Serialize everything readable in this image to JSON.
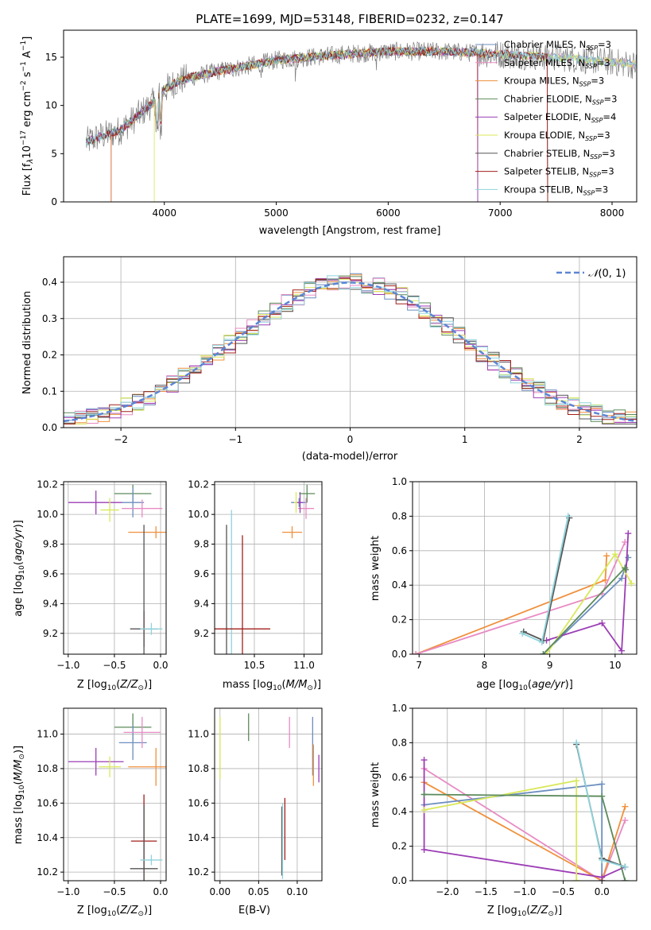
{
  "figure": {
    "title": "PLATE=1699, MJD=53148, FIBERID=0232, z=0.147"
  },
  "colors": {
    "c_miles": "#6c8ebf",
    "s_miles": "#e88bc4",
    "k_miles": "#f0903c",
    "c_elodie": "#5b8a5b",
    "s_elodie": "#9c3db5",
    "k_elodie": "#d9e85a",
    "c_stelib": "#555555",
    "s_stelib": "#a0201c",
    "k_stelib": "#8fd3dc",
    "data": "#808080",
    "normal": "#5b86d6"
  },
  "chart_data": [
    {
      "id": "spectrum",
      "type": "line",
      "xlabel": "wavelength [Angstrom, rest frame]",
      "ylabel": "Flux [f_λ10^-17 erg cm^-2 s^-1 A^-1]",
      "xlim": [
        3100,
        8220
      ],
      "ylim": [
        0,
        17.8
      ],
      "xticks": [
        4000,
        5000,
        6000,
        7000,
        8000
      ],
      "yticks": [
        0,
        5,
        10,
        15
      ],
      "legend_position": "upper-right",
      "series": [
        {
          "name": "Chabrier MILES, N_SSP=3",
          "key": "c_miles"
        },
        {
          "name": "Salpeter MILES, N_SSP=3",
          "key": "s_miles"
        },
        {
          "name": "Kroupa MILES, N_SSP=3",
          "key": "k_miles"
        },
        {
          "name": "Chabrier ELODIE, N_SSP=3",
          "key": "c_elodie"
        },
        {
          "name": "Salpeter ELODIE, N_SSP=4",
          "key": "s_elodie"
        },
        {
          "name": "Kroupa ELODIE, N_SSP=3",
          "key": "k_elodie"
        },
        {
          "name": "Chabrier STELIB, N_SSP=3",
          "key": "c_stelib"
        },
        {
          "name": "Salpeter STELIB, N_SSP=3",
          "key": "s_stelib"
        },
        {
          "name": "Kroupa STELIB, N_SSP=3",
          "key": "k_stelib"
        }
      ],
      "continuum": {
        "x": [
          3300,
          3400,
          3500,
          3600,
          3700,
          3800,
          3900,
          4000,
          4100,
          4200,
          4500,
          4800,
          5000,
          5300,
          5600,
          6000,
          6500,
          7000,
          7500,
          8000,
          8200
        ],
        "y": [
          6.2,
          6.7,
          7.0,
          7.4,
          8.3,
          9.3,
          10.3,
          11.6,
          12.4,
          12.8,
          13.6,
          14.2,
          14.7,
          15.0,
          15.3,
          15.6,
          15.6,
          15.3,
          15.0,
          14.5,
          14.2
        ]
      },
      "model_cutoffs": [
        {
          "key": "s_miles",
          "x": 3525
        },
        {
          "key": "k_miles",
          "x": 3525
        },
        {
          "key": "c_miles",
          "x": 3525
        },
        {
          "key": "k_elodie",
          "x": 3910
        },
        {
          "key": "c_elodie",
          "x": 6800
        },
        {
          "key": "s_elodie",
          "x": 6800
        },
        {
          "key": "k_miles",
          "x": 6800
        },
        {
          "key": "s_stelib",
          "x": 7425
        },
        {
          "key": "c_stelib",
          "x": 7425
        }
      ]
    },
    {
      "id": "residuals",
      "type": "line",
      "xlabel": "(data-model)/error",
      "ylabel": "Normed distribution",
      "xlim": [
        -2.5,
        2.5
      ],
      "ylim": [
        0,
        0.47
      ],
      "xticks": [
        -2,
        -1,
        0,
        1,
        2
      ],
      "yticks": [
        0.0,
        0.1,
        0.2,
        0.3,
        0.4
      ],
      "grid": true,
      "legend_position": "upper-right",
      "normal_label": "N(0,1)",
      "bin_width": 0.1
    },
    {
      "id": "age_vs_z",
      "type": "scatter",
      "xlabel": "Z [log10(Z/Z⊙)]",
      "ylabel": "age [log10(age/yr)]",
      "xlim": [
        -1.05,
        0.06
      ],
      "ylim": [
        9.06,
        10.22
      ],
      "xticks": [
        -1.0,
        -0.5,
        0.0
      ],
      "yticks": [
        9.2,
        9.4,
        9.6,
        9.8,
        10.0,
        10.2
      ],
      "grid": true,
      "points": [
        {
          "key": "s_elodie",
          "x": -0.7,
          "y": 10.08,
          "xerr": 0.3,
          "yerr": 0.08
        },
        {
          "key": "k_elodie",
          "x": -0.55,
          "y": 10.03,
          "xerr": 0.1,
          "yerr": 0.08
        },
        {
          "key": "c_elodie",
          "x": -0.3,
          "y": 10.14,
          "xerr": 0.2,
          "yerr": 0.06
        },
        {
          "key": "c_miles",
          "x": -0.3,
          "y": 10.08,
          "xerr": 0.12,
          "yerr": 0.1
        },
        {
          "key": "s_miles",
          "x": -0.2,
          "y": 10.04,
          "xerr": 0.22,
          "yerr": 0.06
        },
        {
          "key": "k_miles",
          "x": -0.05,
          "y": 9.88,
          "xerr": 0.3,
          "yerr": 0.04
        },
        {
          "key": "s_stelib",
          "x": -0.18,
          "y": 9.23,
          "xerr": 0.03,
          "yerr": 0.12
        },
        {
          "key": "c_stelib",
          "x": -0.18,
          "y": 9.23,
          "xerr": 0.15,
          "yerr": 0.7
        },
        {
          "key": "k_stelib",
          "x": -0.1,
          "y": 9.23,
          "xerr": 0.12,
          "yerr": 0.04
        }
      ]
    },
    {
      "id": "age_vs_mass",
      "type": "scatter",
      "xlabel": "mass [log10(M/M⊙)]",
      "ylabel": "",
      "xlim": [
        10.1,
        11.18
      ],
      "ylim": [
        9.06,
        10.22
      ],
      "xticks": [
        10.5,
        11.0
      ],
      "yticks": [
        9.2,
        9.4,
        9.6,
        9.8,
        10.0,
        10.2
      ],
      "grid": true,
      "points": [
        {
          "key": "c_stelib",
          "x": 10.22,
          "y": 9.23,
          "xerr": 0.01,
          "yerr": 0.7
        },
        {
          "key": "k_stelib",
          "x": 10.27,
          "y": 9.23,
          "xerr": 0.01,
          "yerr": 0.8
        },
        {
          "key": "s_stelib",
          "x": 10.38,
          "y": 9.23,
          "xerr": 0.28,
          "yerr": 0.63
        },
        {
          "key": "k_miles",
          "x": 10.88,
          "y": 9.88,
          "xerr": 0.1,
          "yerr": 0.04
        },
        {
          "key": "c_miles",
          "x": 10.95,
          "y": 10.08,
          "xerr": 0.08,
          "yerr": 0.03
        },
        {
          "key": "s_miles",
          "x": 11.02,
          "y": 10.04,
          "xerr": 0.08,
          "yerr": 0.07
        },
        {
          "key": "k_elodie",
          "x": 10.92,
          "y": 10.08,
          "xerr": 0.02,
          "yerr": 0.07
        },
        {
          "key": "s_elodie",
          "x": 10.96,
          "y": 10.08,
          "xerr": 0.03,
          "yerr": 0.07
        },
        {
          "key": "c_elodie",
          "x": 11.03,
          "y": 10.14,
          "xerr": 0.08,
          "yerr": 0.06
        }
      ]
    },
    {
      "id": "weight_vs_age",
      "type": "line",
      "xlabel": "age [log10(age/yr)]",
      "ylabel": "mass weight",
      "xlim": [
        6.9,
        10.33
      ],
      "ylim": [
        0,
        1.0
      ],
      "xticks": [
        7,
        8,
        9,
        10
      ],
      "yticks": [
        0.0,
        0.2,
        0.4,
        0.6,
        0.8,
        1.0
      ],
      "grid": true,
      "series": [
        {
          "key": "k_miles",
          "x": [
            6.95,
            9.85,
            9.87
          ],
          "y": [
            0.0,
            0.43,
            0.57
          ]
        },
        {
          "key": "s_miles",
          "x": [
            6.95,
            9.8,
            10.15
          ],
          "y": [
            0.0,
            0.35,
            0.65
          ]
        },
        {
          "key": "c_miles",
          "x": [
            8.9,
            10.1,
            10.2
          ],
          "y": [
            0.0,
            0.44,
            0.56
          ]
        },
        {
          "key": "s_elodie",
          "x": [
            8.95,
            9.8,
            10.1,
            10.2
          ],
          "y": [
            0.08,
            0.18,
            0.02,
            0.7
          ]
        },
        {
          "key": "k_elodie",
          "x": [
            8.95,
            10.0,
            10.25
          ],
          "y": [
            0.0,
            0.58,
            0.41
          ]
        },
        {
          "key": "c_elodie",
          "x": [
            8.9,
            10.15,
            10.16
          ],
          "y": [
            0.0,
            0.5,
            0.49
          ]
        },
        {
          "key": "c_stelib",
          "x": [
            8.6,
            8.9,
            9.3
          ],
          "y": [
            0.13,
            0.08,
            0.79
          ]
        },
        {
          "key": "k_stelib",
          "x": [
            8.58,
            8.88,
            9.28
          ],
          "y": [
            0.12,
            0.07,
            0.8
          ]
        }
      ]
    },
    {
      "id": "mass_vs_z",
      "type": "scatter",
      "xlabel": "Z [log10(Z/Z⊙)]",
      "ylabel": "mass [log10(M/M⊙)]",
      "xlim": [
        -1.05,
        0.06
      ],
      "ylim": [
        10.15,
        11.15
      ],
      "xticks": [
        -1.0,
        -0.5,
        0.0
      ],
      "yticks": [
        10.2,
        10.4,
        10.6,
        10.8,
        11.0
      ],
      "grid": true,
      "points": [
        {
          "key": "s_elodie",
          "x": -0.7,
          "y": 10.84,
          "xerr": 0.3,
          "yerr": 0.08
        },
        {
          "key": "k_elodie",
          "x": -0.55,
          "y": 10.81,
          "xerr": 0.12,
          "yerr": 0.06
        },
        {
          "key": "c_elodie",
          "x": -0.3,
          "y": 11.04,
          "xerr": 0.2,
          "yerr": 0.08
        },
        {
          "key": "c_miles",
          "x": -0.3,
          "y": 10.95,
          "xerr": 0.15,
          "yerr": 0.1
        },
        {
          "key": "s_miles",
          "x": -0.2,
          "y": 11.01,
          "xerr": 0.2,
          "yerr": 0.09
        },
        {
          "key": "k_miles",
          "x": -0.05,
          "y": 10.81,
          "xerr": 0.3,
          "yerr": 0.11
        },
        {
          "key": "s_stelib",
          "x": -0.18,
          "y": 10.38,
          "xerr": 0.14,
          "yerr": 0.27
        },
        {
          "key": "c_stelib",
          "x": -0.18,
          "y": 10.22,
          "xerr": 0.15,
          "yerr": 0.37
        },
        {
          "key": "k_stelib",
          "x": -0.1,
          "y": 10.27,
          "xerr": 0.12,
          "yerr": 0.03
        }
      ]
    },
    {
      "id": "mass_vs_ebv",
      "type": "scatter",
      "xlabel": "E(B-V)",
      "ylabel": "",
      "xlim": [
        -0.007,
        0.132
      ],
      "ylim": [
        10.15,
        11.15
      ],
      "xticks": [
        0.0,
        0.05,
        0.1
      ],
      "yticks": [
        10.2,
        10.4,
        10.6,
        10.8,
        11.0
      ],
      "grid": true,
      "points": [
        {
          "key": "k_elodie",
          "x": 0.0,
          "y": 10.92,
          "xerr": 0.0,
          "yerr": 0.18
        },
        {
          "key": "c_elodie",
          "x": 0.037,
          "y": 11.04,
          "xerr": 0.0,
          "yerr": 0.08
        },
        {
          "key": "s_miles",
          "x": 0.09,
          "y": 11.01,
          "xerr": 0.0,
          "yerr": 0.09
        },
        {
          "key": "c_stelib",
          "x": 0.08,
          "y": 10.38,
          "xerr": 0.0,
          "yerr": 0.2
        },
        {
          "key": "k_stelib",
          "x": 0.081,
          "y": 10.38,
          "xerr": 0.0,
          "yerr": 0.22
        },
        {
          "key": "s_stelib",
          "x": 0.084,
          "y": 10.45,
          "xerr": 0.0,
          "yerr": 0.18
        },
        {
          "key": "c_miles",
          "x": 0.12,
          "y": 10.93,
          "xerr": 0.0,
          "yerr": 0.17
        },
        {
          "key": "k_miles",
          "x": 0.121,
          "y": 10.82,
          "xerr": 0.0,
          "yerr": 0.12
        },
        {
          "key": "s_elodie",
          "x": 0.128,
          "y": 10.8,
          "xerr": 0.0,
          "yerr": 0.08
        }
      ]
    },
    {
      "id": "weight_vs_z",
      "type": "line",
      "xlabel": "Z [log10(Z/Z⊙)]",
      "ylabel": "mass weight",
      "xlim": [
        -2.45,
        0.45
      ],
      "ylim": [
        0,
        1.0
      ],
      "xticks": [
        -2.0,
        -1.5,
        -1.0,
        -0.5,
        0.0
      ],
      "yticks": [
        0.0,
        0.2,
        0.4,
        0.6,
        0.8,
        1.0
      ],
      "grid": true,
      "series": [
        {
          "key": "s_miles",
          "x": [
            -2.3,
            0.0,
            0.3
          ],
          "y": [
            0.65,
            0.0,
            0.35
          ]
        },
        {
          "key": "k_miles",
          "x": [
            -2.3,
            0.0,
            0.3
          ],
          "y": [
            0.57,
            0.0,
            0.43
          ]
        },
        {
          "key": "c_miles",
          "x": [
            -2.3,
            0.0,
            0.0
          ],
          "y": [
            0.44,
            0.56,
            0.0
          ]
        },
        {
          "key": "s_elodie",
          "x": [
            -2.3,
            -2.3,
            0.0,
            0.3
          ],
          "y": [
            0.7,
            0.18,
            0.02,
            0.08
          ]
        },
        {
          "key": "k_elodie",
          "x": [
            -2.3,
            -0.33,
            -0.33
          ],
          "y": [
            0.41,
            0.58,
            0.0
          ]
        },
        {
          "key": "c_elodie",
          "x": [
            -2.3,
            0.0,
            0.3
          ],
          "y": [
            0.5,
            0.49,
            0.0
          ]
        },
        {
          "key": "c_stelib",
          "x": [
            -0.33,
            0.0,
            0.3
          ],
          "y": [
            0.79,
            0.13,
            0.08
          ]
        },
        {
          "key": "k_stelib",
          "x": [
            -0.33,
            0.0,
            0.3
          ],
          "y": [
            0.8,
            0.12,
            0.08
          ]
        }
      ]
    }
  ]
}
